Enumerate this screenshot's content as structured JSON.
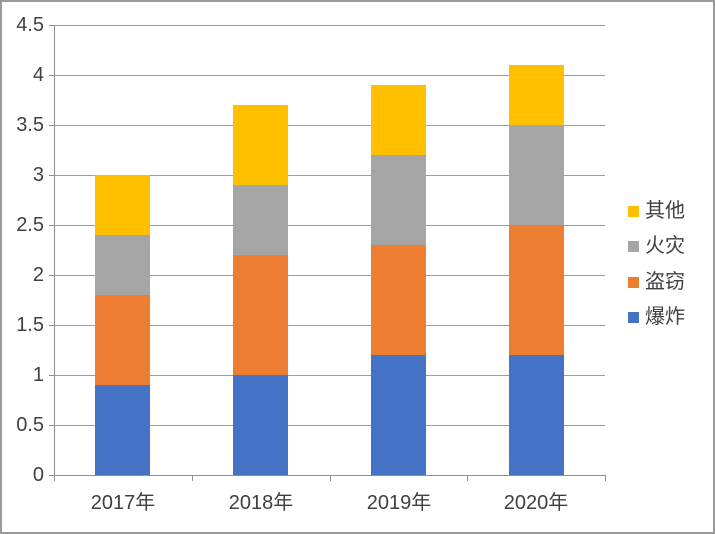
{
  "chart_data": {
    "type": "bar",
    "variant": "stacked-column",
    "title": "",
    "xlabel": "",
    "ylabel": "",
    "categories": [
      "2017年",
      "2018年",
      "2019年",
      "2020年"
    ],
    "series": [
      {
        "name": "爆炸",
        "color": "#4472C4",
        "values": [
          0.9,
          1.0,
          1.2,
          1.2
        ]
      },
      {
        "name": "盗窃",
        "color": "#ED7D31",
        "values": [
          0.9,
          1.2,
          1.1,
          1.3
        ]
      },
      {
        "name": "火灾",
        "color": "#A5A5A5",
        "values": [
          0.6,
          0.7,
          0.9,
          1.0
        ]
      },
      {
        "name": "其他",
        "color": "#FFC000",
        "values": [
          0.6,
          0.8,
          0.7,
          0.6
        ]
      }
    ],
    "stack_order_bottom_to_top": [
      "爆炸",
      "盗窃",
      "火灾",
      "其他"
    ],
    "category_totals": [
      3.0,
      3.7,
      3.9,
      4.1
    ],
    "ylim": [
      0,
      4.5
    ],
    "ytick_labels": [
      "0",
      "0.5",
      "1",
      "1.5",
      "2",
      "2.5",
      "3",
      "3.5",
      "4",
      "4.5"
    ],
    "grid": true,
    "legend": {
      "position": "right",
      "items_top_to_bottom": [
        "其他",
        "火灾",
        "盗窃",
        "爆炸"
      ]
    }
  },
  "colors": {
    "background": "#FFFFFF",
    "border": "#9A9A9A",
    "gridline": "#9C9C9C",
    "axis": "#8F8F8F",
    "text": "#404040"
  }
}
